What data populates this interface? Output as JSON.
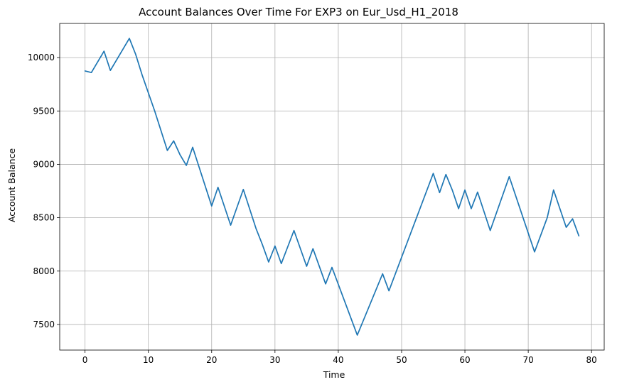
{
  "chart_data": {
    "type": "line",
    "title": "Account Balances Over Time For EXP3 on Eur_Usd_H1_2018",
    "xlabel": "Time",
    "ylabel": "Account Balance",
    "xlim": [
      -4.0,
      82.0
    ],
    "ylim": [
      7260,
      10320
    ],
    "xticks": [
      0,
      10,
      20,
      30,
      40,
      50,
      60,
      70,
      80
    ],
    "yticks": [
      7500,
      8000,
      8500,
      9000,
      9500,
      10000
    ],
    "grid": true,
    "colors": {
      "series": "#1f77b4"
    },
    "series": [
      {
        "x": [
          0,
          1,
          3,
          4,
          7,
          8,
          9,
          11,
          13,
          14,
          15,
          16,
          17,
          20,
          21,
          23,
          25,
          27,
          28,
          29,
          30,
          31,
          33,
          35,
          36,
          38,
          39,
          43,
          47,
          48,
          55,
          56,
          57,
          58,
          59,
          60,
          61,
          62,
          64,
          67,
          71,
          73,
          74,
          76,
          77,
          78
        ],
        "y": [
          9875,
          9860,
          10060,
          9880,
          10180,
          10030,
          9840,
          9500,
          9130,
          9220,
          9090,
          8990,
          9160,
          8610,
          8785,
          8430,
          8765,
          8400,
          8250,
          8085,
          8235,
          8070,
          8380,
          8045,
          8210,
          7880,
          8035,
          7400,
          7975,
          7815,
          8915,
          8735,
          8905,
          8760,
          8585,
          8760,
          8585,
          8740,
          8380,
          8885,
          8180,
          8500,
          8760,
          8410,
          8490,
          8330
        ]
      }
    ]
  }
}
